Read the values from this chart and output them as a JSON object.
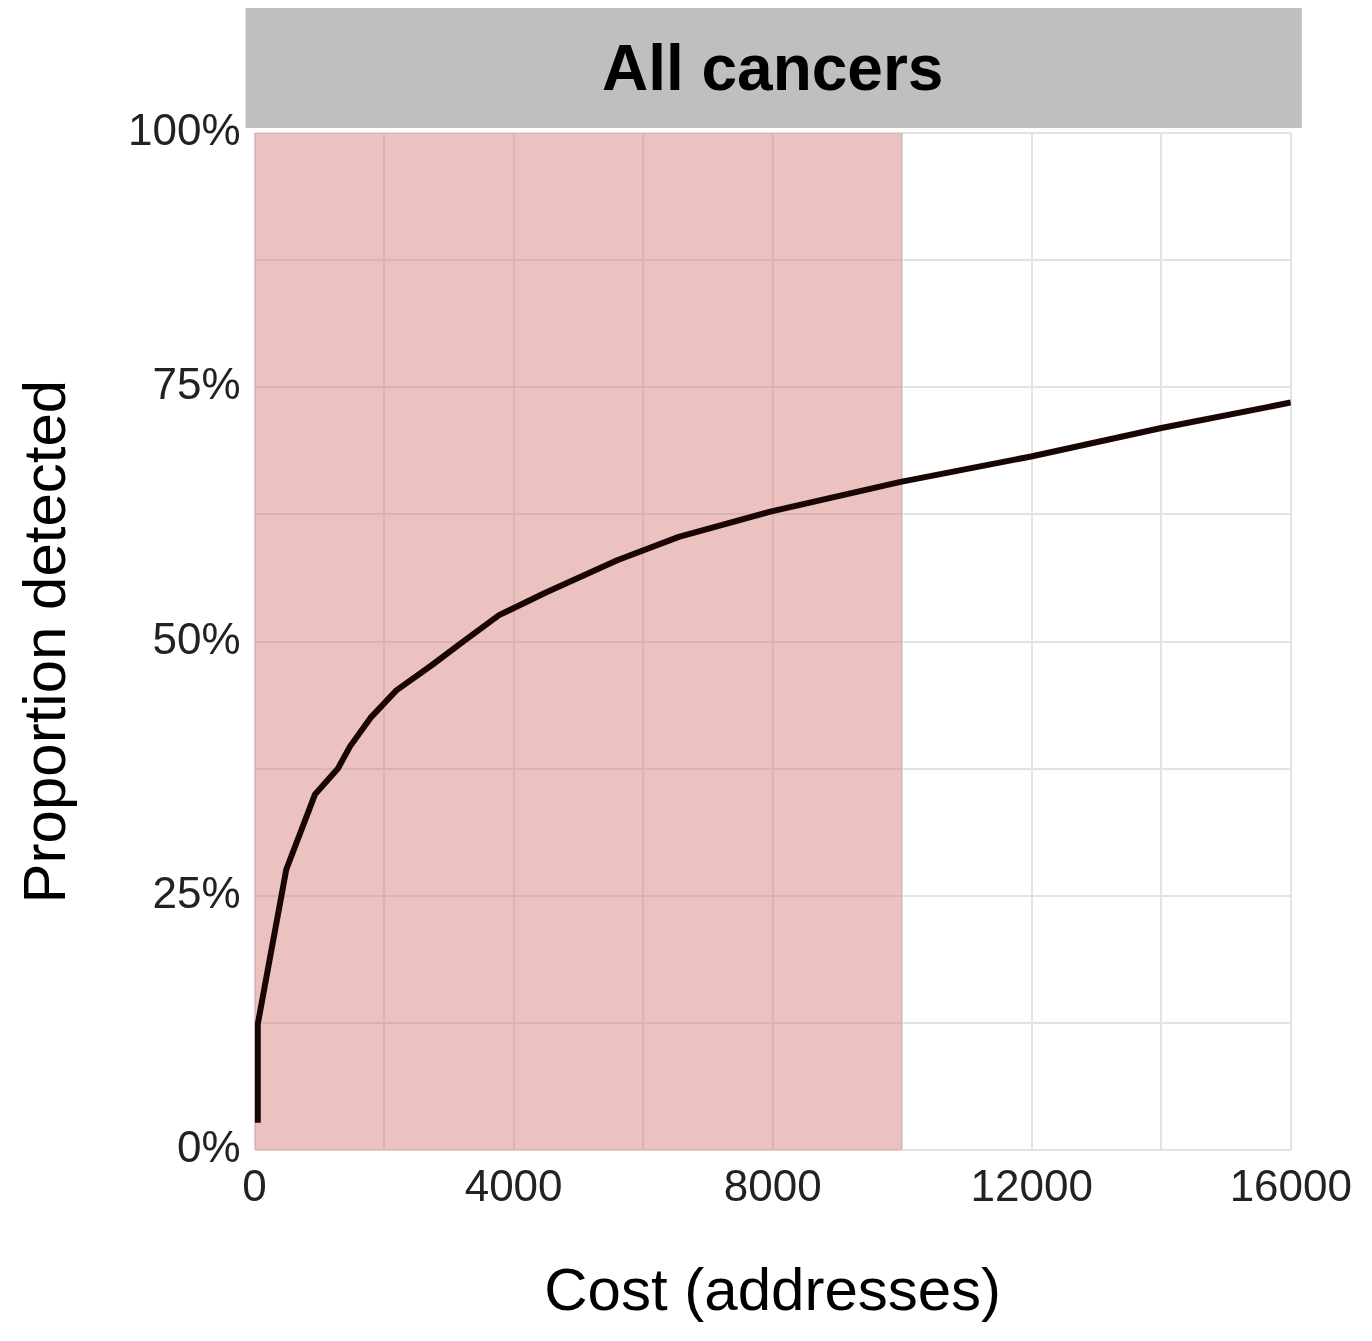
{
  "chart_data": {
    "type": "line",
    "title": "All cancers",
    "xlabel": "Cost (addresses)",
    "ylabel": "Proportion detected",
    "x": [
      50,
      50,
      490,
      935,
      1285,
      1475,
      1790,
      2190,
      2740,
      3220,
      3775,
      4490,
      5600,
      6550,
      7980,
      9975,
      11990,
      14000,
      16000
    ],
    "series": [
      {
        "color": "#1a0505",
        "values": [
          2.7,
          12.4,
          27.6,
          35,
          37.5,
          39.7,
          42.5,
          45.2,
          47.7,
          50,
          52.6,
          54.8,
          58,
          60.3,
          62.8,
          65.7,
          68.2,
          71,
          73.5
        ]
      }
    ],
    "xlim": [
      0,
      16000
    ],
    "xticks": [
      0,
      {
        "value": 2000,
        "label": null
      },
      4000,
      {
        "value": 6000,
        "label": null
      },
      8000,
      {
        "value": 10000,
        "label": null
      },
      12000,
      {
        "value": 14000,
        "label": null
      },
      16000
    ],
    "ylim": [
      0,
      100
    ],
    "yticks": [
      {
        "value": 0,
        "label": "0%"
      },
      {
        "value": 12.5,
        "label": null
      },
      {
        "value": 25,
        "label": "25%"
      },
      {
        "value": 37.5,
        "label": null
      },
      {
        "value": 50,
        "label": "50%"
      },
      {
        "value": 62.5,
        "label": null
      },
      {
        "value": 75,
        "label": "75%"
      },
      {
        "value": 87.5,
        "label": null
      },
      {
        "value": 100,
        "label": "100%"
      }
    ],
    "bands": [
      {
        "axis": "x",
        "from": 0,
        "to": 10000,
        "color": "#d27771"
      }
    ],
    "grid": true,
    "legend": false,
    "marker": "none",
    "line_style": "solid"
  }
}
